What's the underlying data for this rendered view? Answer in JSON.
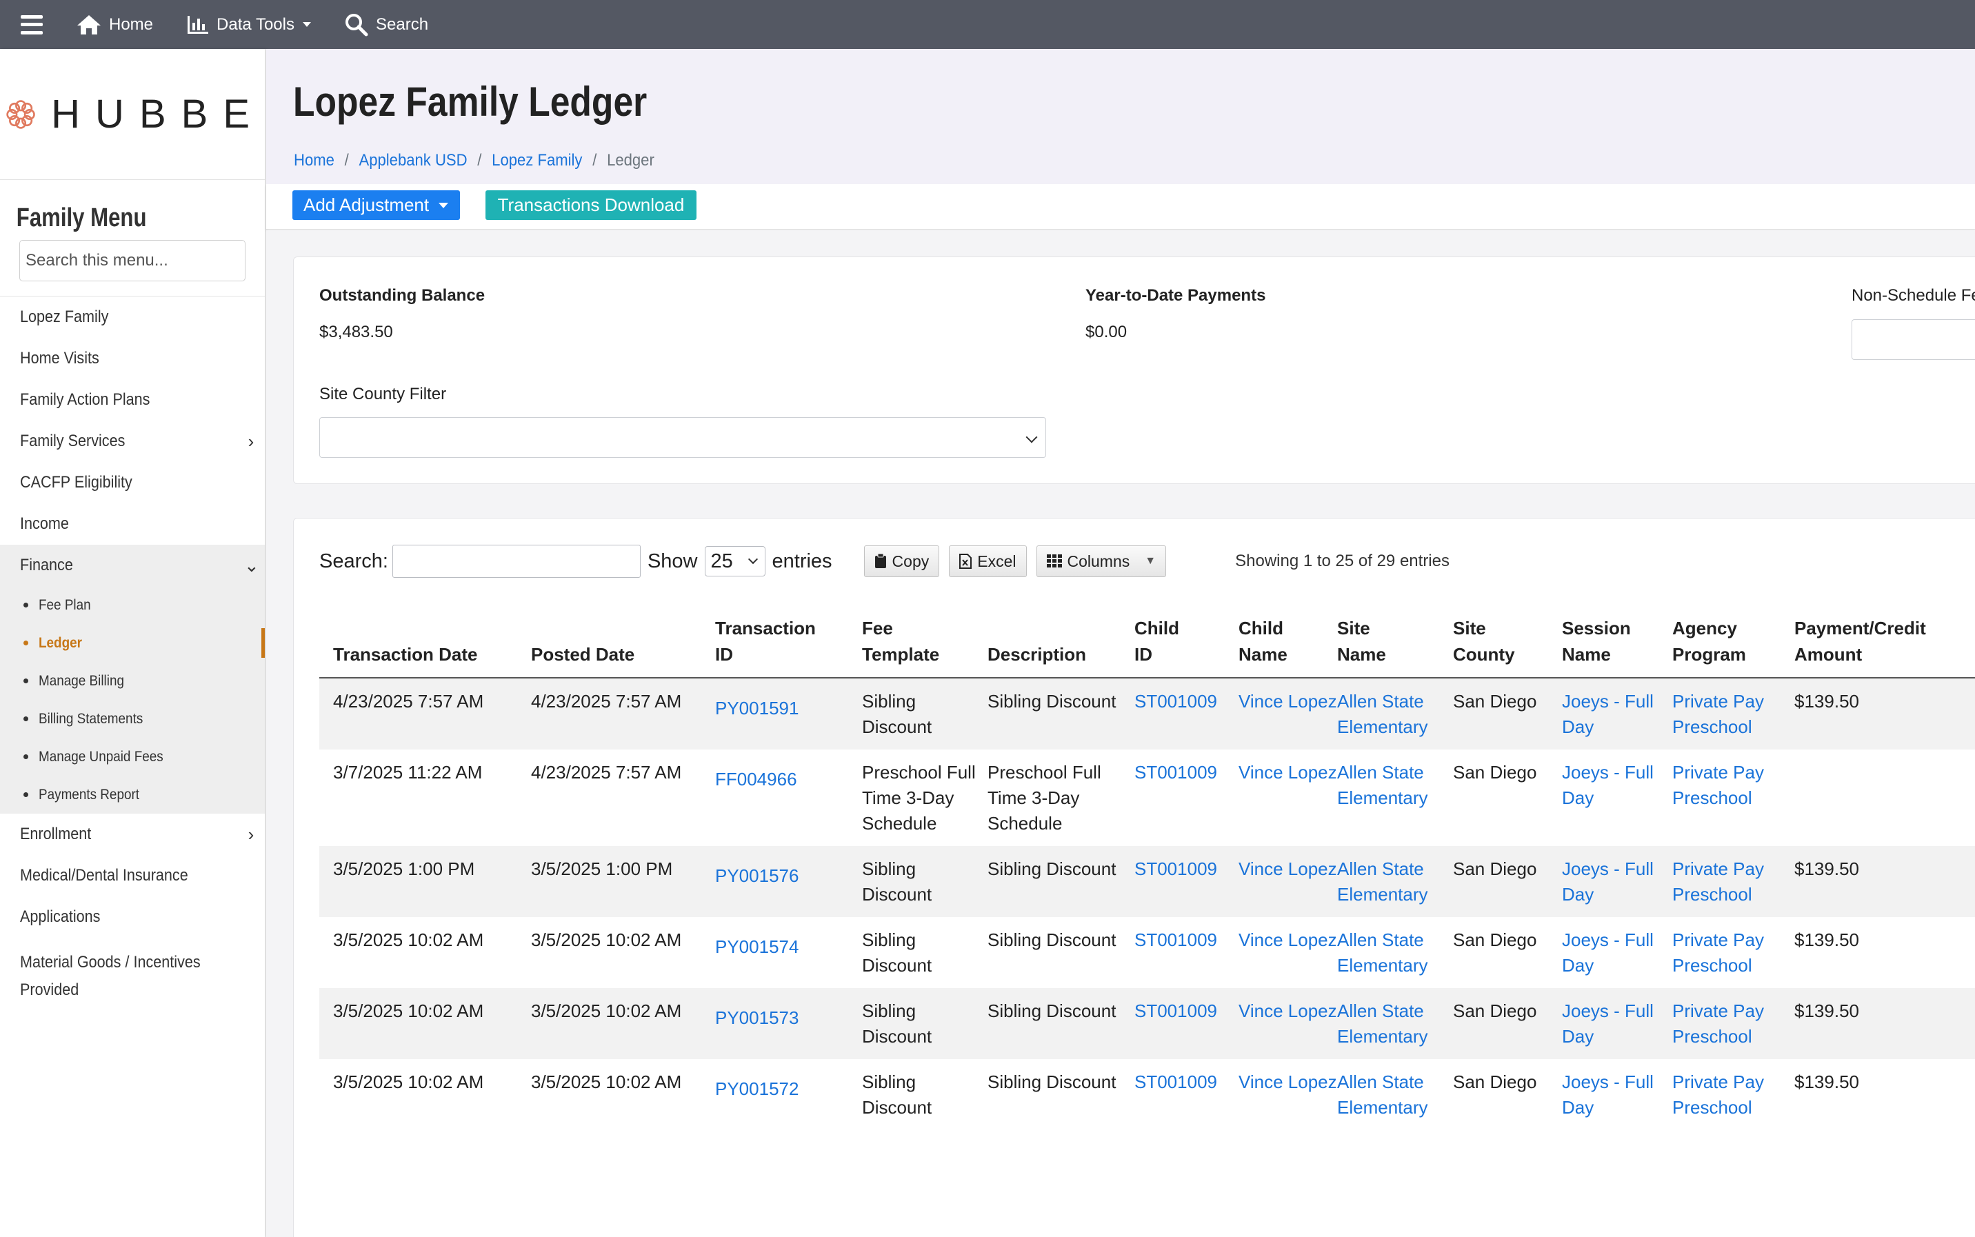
{
  "topbar": {
    "home": "Home",
    "data_tools": "Data Tools",
    "search": "Search"
  },
  "brand": {
    "logo_text": "HUBBE"
  },
  "sidebar": {
    "title": "Family Menu",
    "search_placeholder": "Search this menu...",
    "items_top": [
      {
        "label": "Lopez Family"
      },
      {
        "label": "Home Visits"
      },
      {
        "label": "Family Action Plans"
      },
      {
        "label": "Family Services"
      },
      {
        "label": "CACFP Eligibility"
      },
      {
        "label": "Income"
      }
    ],
    "finance": {
      "label": "Finance",
      "sub_items": [
        {
          "label": "Fee Plan"
        },
        {
          "label": "Ledger"
        },
        {
          "label": "Manage Billing"
        },
        {
          "label": "Billing Statements"
        },
        {
          "label": "Manage Unpaid Fees"
        },
        {
          "label": "Payments Report"
        }
      ]
    },
    "items_bottom": [
      {
        "label": "Enrollment"
      },
      {
        "label": "Medical/Dental Insurance"
      },
      {
        "label": "Applications"
      },
      {
        "label": "Material Goods / Incentives Provided"
      }
    ]
  },
  "page": {
    "title": "Lopez Family Ledger",
    "breadcrumb": [
      "Home",
      "Applebank USD",
      "Lopez Family",
      "Ledger"
    ]
  },
  "actions": {
    "add_adjustment": "Add Adjustment",
    "transactions_download": "Transactions Download"
  },
  "summary": {
    "outstanding_label": "Outstanding Balance",
    "outstanding_value": "$3,483.50",
    "ytd_label": "Year-to-Date Payments",
    "ytd_value": "$0.00",
    "nonschedule_label": "Non-Schedule Fe",
    "site_county_label": "Site County Filter"
  },
  "table_tools": {
    "search_label": "Search:",
    "show_label": "Show",
    "page_length": "25",
    "entries_label": "entries",
    "copy": "Copy",
    "excel": "Excel",
    "columns": "Columns",
    "info": "Showing 1 to 25 of 29 entries"
  },
  "table": {
    "headers": {
      "transaction_date": "Transaction Date",
      "posted_date": "Posted Date",
      "transaction_id_1": "Transaction",
      "transaction_id_2": "ID",
      "fee_template_1": "Fee",
      "fee_template_2": "Template",
      "description": "Description",
      "child_id_1": "Child",
      "child_id_2": "ID",
      "child_name_1": "Child",
      "child_name_2": "Name",
      "site_name_1": "Site",
      "site_name_2": "Name",
      "site_county_1": "Site",
      "site_county_2": "County",
      "session_name_1": "Session",
      "session_name_2": "Name",
      "agency_program_1": "Agency",
      "agency_program_2": "Program",
      "payment_credit_1": "Payment/Credit",
      "payment_credit_2": "Amount"
    },
    "rows": [
      {
        "transaction_date": "4/23/2025 7:57 AM",
        "posted_date": "4/23/2025 7:57 AM",
        "transaction_id": "PY001591",
        "fee_template": "Sibling Discount",
        "description": "Sibling Discount",
        "child_id": "ST001009",
        "child_name": "Vince Lopez",
        "site_name": "Allen State Elementary",
        "site_county": "San Diego",
        "session_name": "Joeys - Full Day",
        "agency_program": "Private Pay Preschool",
        "amount": "$139.50"
      },
      {
        "transaction_date": "3/7/2025 11:22 AM",
        "posted_date": "4/23/2025 7:57 AM",
        "transaction_id": "FF004966",
        "fee_template": "Preschool Full Time 3-Day Schedule",
        "description": "Preschool Full Time 3-Day Schedule",
        "child_id": "ST001009",
        "child_name": "Vince Lopez",
        "site_name": "Allen State Elementary",
        "site_county": "San Diego",
        "session_name": "Joeys - Full Day",
        "agency_program": "Private Pay Preschool",
        "amount": ""
      },
      {
        "transaction_date": "3/5/2025 1:00 PM",
        "posted_date": "3/5/2025 1:00 PM",
        "transaction_id": "PY001576",
        "fee_template": "Sibling Discount",
        "description": "Sibling Discount",
        "child_id": "ST001009",
        "child_name": "Vince Lopez",
        "site_name": "Allen State Elementary",
        "site_county": "San Diego",
        "session_name": "Joeys - Full Day",
        "agency_program": "Private Pay Preschool",
        "amount": "$139.50"
      },
      {
        "transaction_date": "3/5/2025 10:02 AM",
        "posted_date": "3/5/2025 10:02 AM",
        "transaction_id": "PY001574",
        "fee_template": "Sibling Discount",
        "description": "Sibling Discount",
        "child_id": "ST001009",
        "child_name": "Vince Lopez",
        "site_name": "Allen State Elementary",
        "site_county": "San Diego",
        "session_name": "Joeys - Full Day",
        "agency_program": "Private Pay Preschool",
        "amount": "$139.50"
      },
      {
        "transaction_date": "3/5/2025 10:02 AM",
        "posted_date": "3/5/2025 10:02 AM",
        "transaction_id": "PY001573",
        "fee_template": "Sibling Discount",
        "description": "Sibling Discount",
        "child_id": "ST001009",
        "child_name": "Vince Lopez",
        "site_name": "Allen State Elementary",
        "site_county": "San Diego",
        "session_name": "Joeys - Full Day",
        "agency_program": "Private Pay Preschool",
        "amount": "$139.50"
      },
      {
        "transaction_date": "3/5/2025 10:02 AM",
        "posted_date": "3/5/2025 10:02 AM",
        "transaction_id": "PY001572",
        "fee_template": "Sibling Discount",
        "description": "Sibling Discount",
        "child_id": "ST001009",
        "child_name": "Vince Lopez",
        "site_name": "Allen State Elementary",
        "site_county": "San Diego",
        "session_name": "Joeys - Full Day",
        "agency_program": "Private Pay Preschool",
        "amount": "$139.50"
      }
    ]
  },
  "colors": {
    "topbar": "#545863",
    "primary": "#1b7ff0",
    "info": "#1fb2b4",
    "link": "#1a73d9",
    "active": "#c77717",
    "logo_flower": "#e07a5f"
  }
}
